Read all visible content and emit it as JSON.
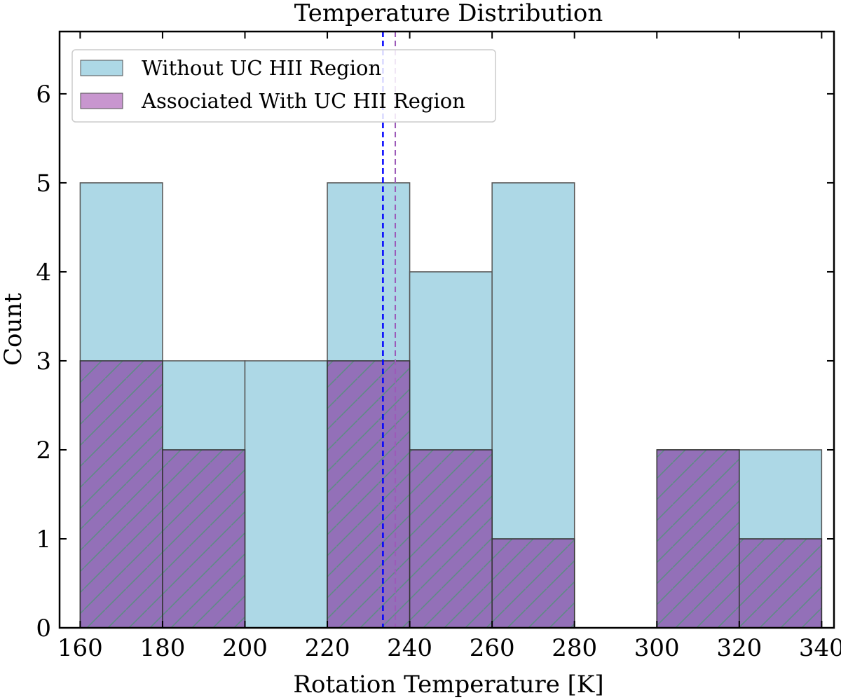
{
  "chart_data": {
    "type": "bar",
    "title": "Temperature Distribution",
    "xlabel": "Rotation Temperature [K]",
    "ylabel": "Count",
    "xlim": [
      155,
      343
    ],
    "ylim": [
      0,
      6.7
    ],
    "xticks": [
      160,
      180,
      200,
      220,
      240,
      260,
      280,
      300,
      320,
      340
    ],
    "yticks": [
      0,
      1,
      2,
      3,
      4,
      5,
      6
    ],
    "bin_edges": [
      160,
      180,
      200,
      220,
      240,
      260,
      280,
      300,
      320,
      340
    ],
    "series": [
      {
        "name": "Without UC HII Region",
        "values": [
          5,
          3,
          3,
          5,
          4,
          5,
          0,
          2,
          2
        ],
        "color": "#add8e6",
        "hatch": "none"
      },
      {
        "name": "Associated With UC HII Region",
        "values": [
          3,
          2,
          0,
          3,
          2,
          1,
          0,
          2,
          1
        ],
        "color": "#9370b8",
        "hatch": "/"
      }
    ],
    "vlines": [
      {
        "x": 233.5,
        "color": "#0000ff",
        "style": "dashed"
      },
      {
        "x": 236.5,
        "color": "#9c5ab8",
        "style": "dashed"
      }
    ],
    "legend_position": "top-left",
    "grid": false
  }
}
